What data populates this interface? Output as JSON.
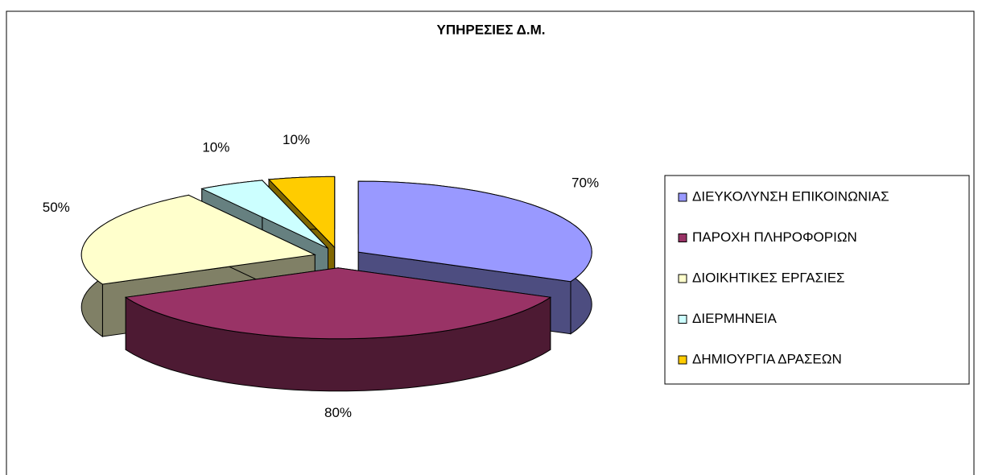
{
  "chart_data": {
    "type": "pie",
    "title": "ΥΠΗΡΕΣΙΕΣ Δ.Μ.",
    "categories": [
      "ΔΙΕΥΚΟΛΥΝΣΗ ΕΠΙΚΟΙΝΩΝΙΑΣ",
      "ΠΑΡΟΧΗ ΠΛΗΡΟΦΟΡΙΩΝ",
      "ΔΙΟΙΚΗΤΙΚΕΣ ΕΡΓΑΣΙΕΣ",
      "ΔΙΕΡΜΗΝΕΙΑ",
      "ΔΗΜΙΟΥΡΓΙΑ ΔΡΑΣΕΩΝ"
    ],
    "values": [
      70,
      80,
      50,
      10,
      10
    ],
    "value_labels": [
      "70%",
      "80%",
      "50%",
      "10%",
      "10%"
    ],
    "colors": [
      "#9999ff",
      "#993366",
      "#ffffcc",
      "#ccffff",
      "#ffcc00"
    ],
    "legend": "right"
  }
}
